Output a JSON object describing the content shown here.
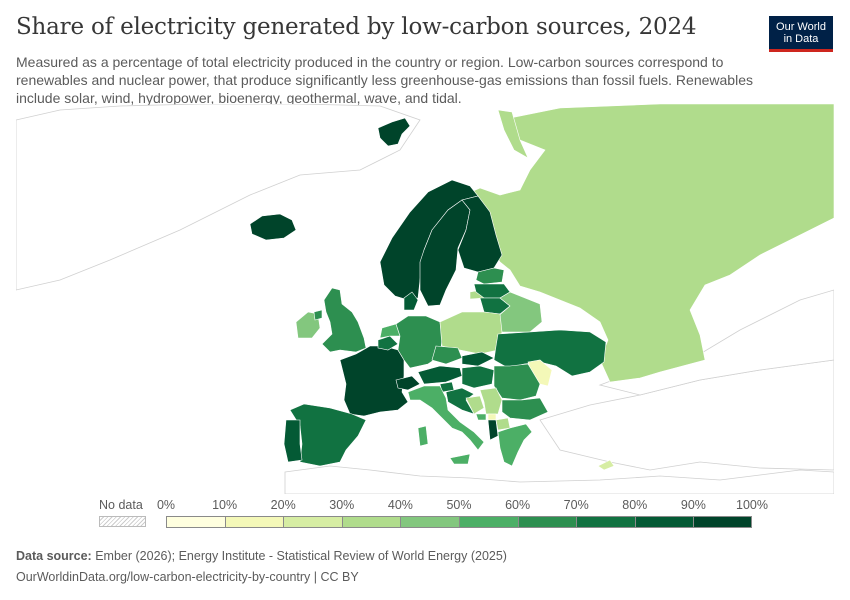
{
  "header": {
    "title": "Share of electricity generated by low-carbon sources, 2024",
    "subtitle": "Measured as a percentage of total electricity produced in the country or region. Low-carbon sources correspond to renewables and nuclear power, that produce significantly less greenhouse-gas emissions than fossil fuels. Renewables include solar, wind, hydropower, bioenergy, geothermal, wave, and tidal."
  },
  "logo": {
    "line1": "Our World",
    "line2": "in Data"
  },
  "legend": {
    "no_data_label": "No data",
    "ticks": [
      "0%",
      "10%",
      "20%",
      "30%",
      "40%",
      "50%",
      "60%",
      "70%",
      "80%",
      "90%",
      "100%"
    ],
    "colors": [
      "#ffffdf",
      "#f4f8b8",
      "#d6eda3",
      "#b0dc8c",
      "#83c77e",
      "#4caf66",
      "#2d8f50",
      "#117241",
      "#045a35",
      "#00442a"
    ]
  },
  "map": {
    "countries": [
      {
        "name": "Russia",
        "value": 37
      },
      {
        "name": "Iceland",
        "value": 100
      },
      {
        "name": "Svalbard",
        "value": 95
      },
      {
        "name": "Norway",
        "value": 99
      },
      {
        "name": "Sweden",
        "value": 98
      },
      {
        "name": "Finland",
        "value": 95
      },
      {
        "name": "Estonia",
        "value": 62
      },
      {
        "name": "Latvia",
        "value": 72
      },
      {
        "name": "Lithuania",
        "value": 78
      },
      {
        "name": "Belarus",
        "value": 42
      },
      {
        "name": "United Kingdom",
        "value": 65
      },
      {
        "name": "Ireland",
        "value": 45
      },
      {
        "name": "France",
        "value": 95
      },
      {
        "name": "Belgium",
        "value": 72
      },
      {
        "name": "Netherlands",
        "value": 52
      },
      {
        "name": "Germany",
        "value": 62
      },
      {
        "name": "Denmark",
        "value": 88
      },
      {
        "name": "Poland",
        "value": 30
      },
      {
        "name": "Czechia",
        "value": 60
      },
      {
        "name": "Slovakia",
        "value": 85
      },
      {
        "name": "Austria",
        "value": 88
      },
      {
        "name": "Switzerland",
        "value": 98
      },
      {
        "name": "Hungary",
        "value": 75
      },
      {
        "name": "Ukraine",
        "value": 75
      },
      {
        "name": "Moldova",
        "value": 10
      },
      {
        "name": "Romania",
        "value": 68
      },
      {
        "name": "Bulgaria",
        "value": 65
      },
      {
        "name": "Serbia",
        "value": 33
      },
      {
        "name": "Bosnia and Herzegovina",
        "value": 35
      },
      {
        "name": "Croatia",
        "value": 70
      },
      {
        "name": "Slovenia",
        "value": 72
      },
      {
        "name": "Montenegro",
        "value": 55
      },
      {
        "name": "Albania",
        "value": 100
      },
      {
        "name": "North Macedonia",
        "value": 30
      },
      {
        "name": "Kosovo",
        "value": 10
      },
      {
        "name": "Greece",
        "value": 55
      },
      {
        "name": "Italy",
        "value": 52
      },
      {
        "name": "Sardinia",
        "value": 52
      },
      {
        "name": "Sicily",
        "value": 52
      },
      {
        "name": "Spain",
        "value": 75
      },
      {
        "name": "Portugal",
        "value": 85
      },
      {
        "name": "Cyprus",
        "value": 20
      }
    ]
  },
  "footer": {
    "source_label": "Data source:",
    "source_text": "Ember (2026); Energy Institute - Statistical Review of World Energy (2025)",
    "url": "OurWorldinData.org/low-carbon-electricity-by-country | CC BY"
  }
}
